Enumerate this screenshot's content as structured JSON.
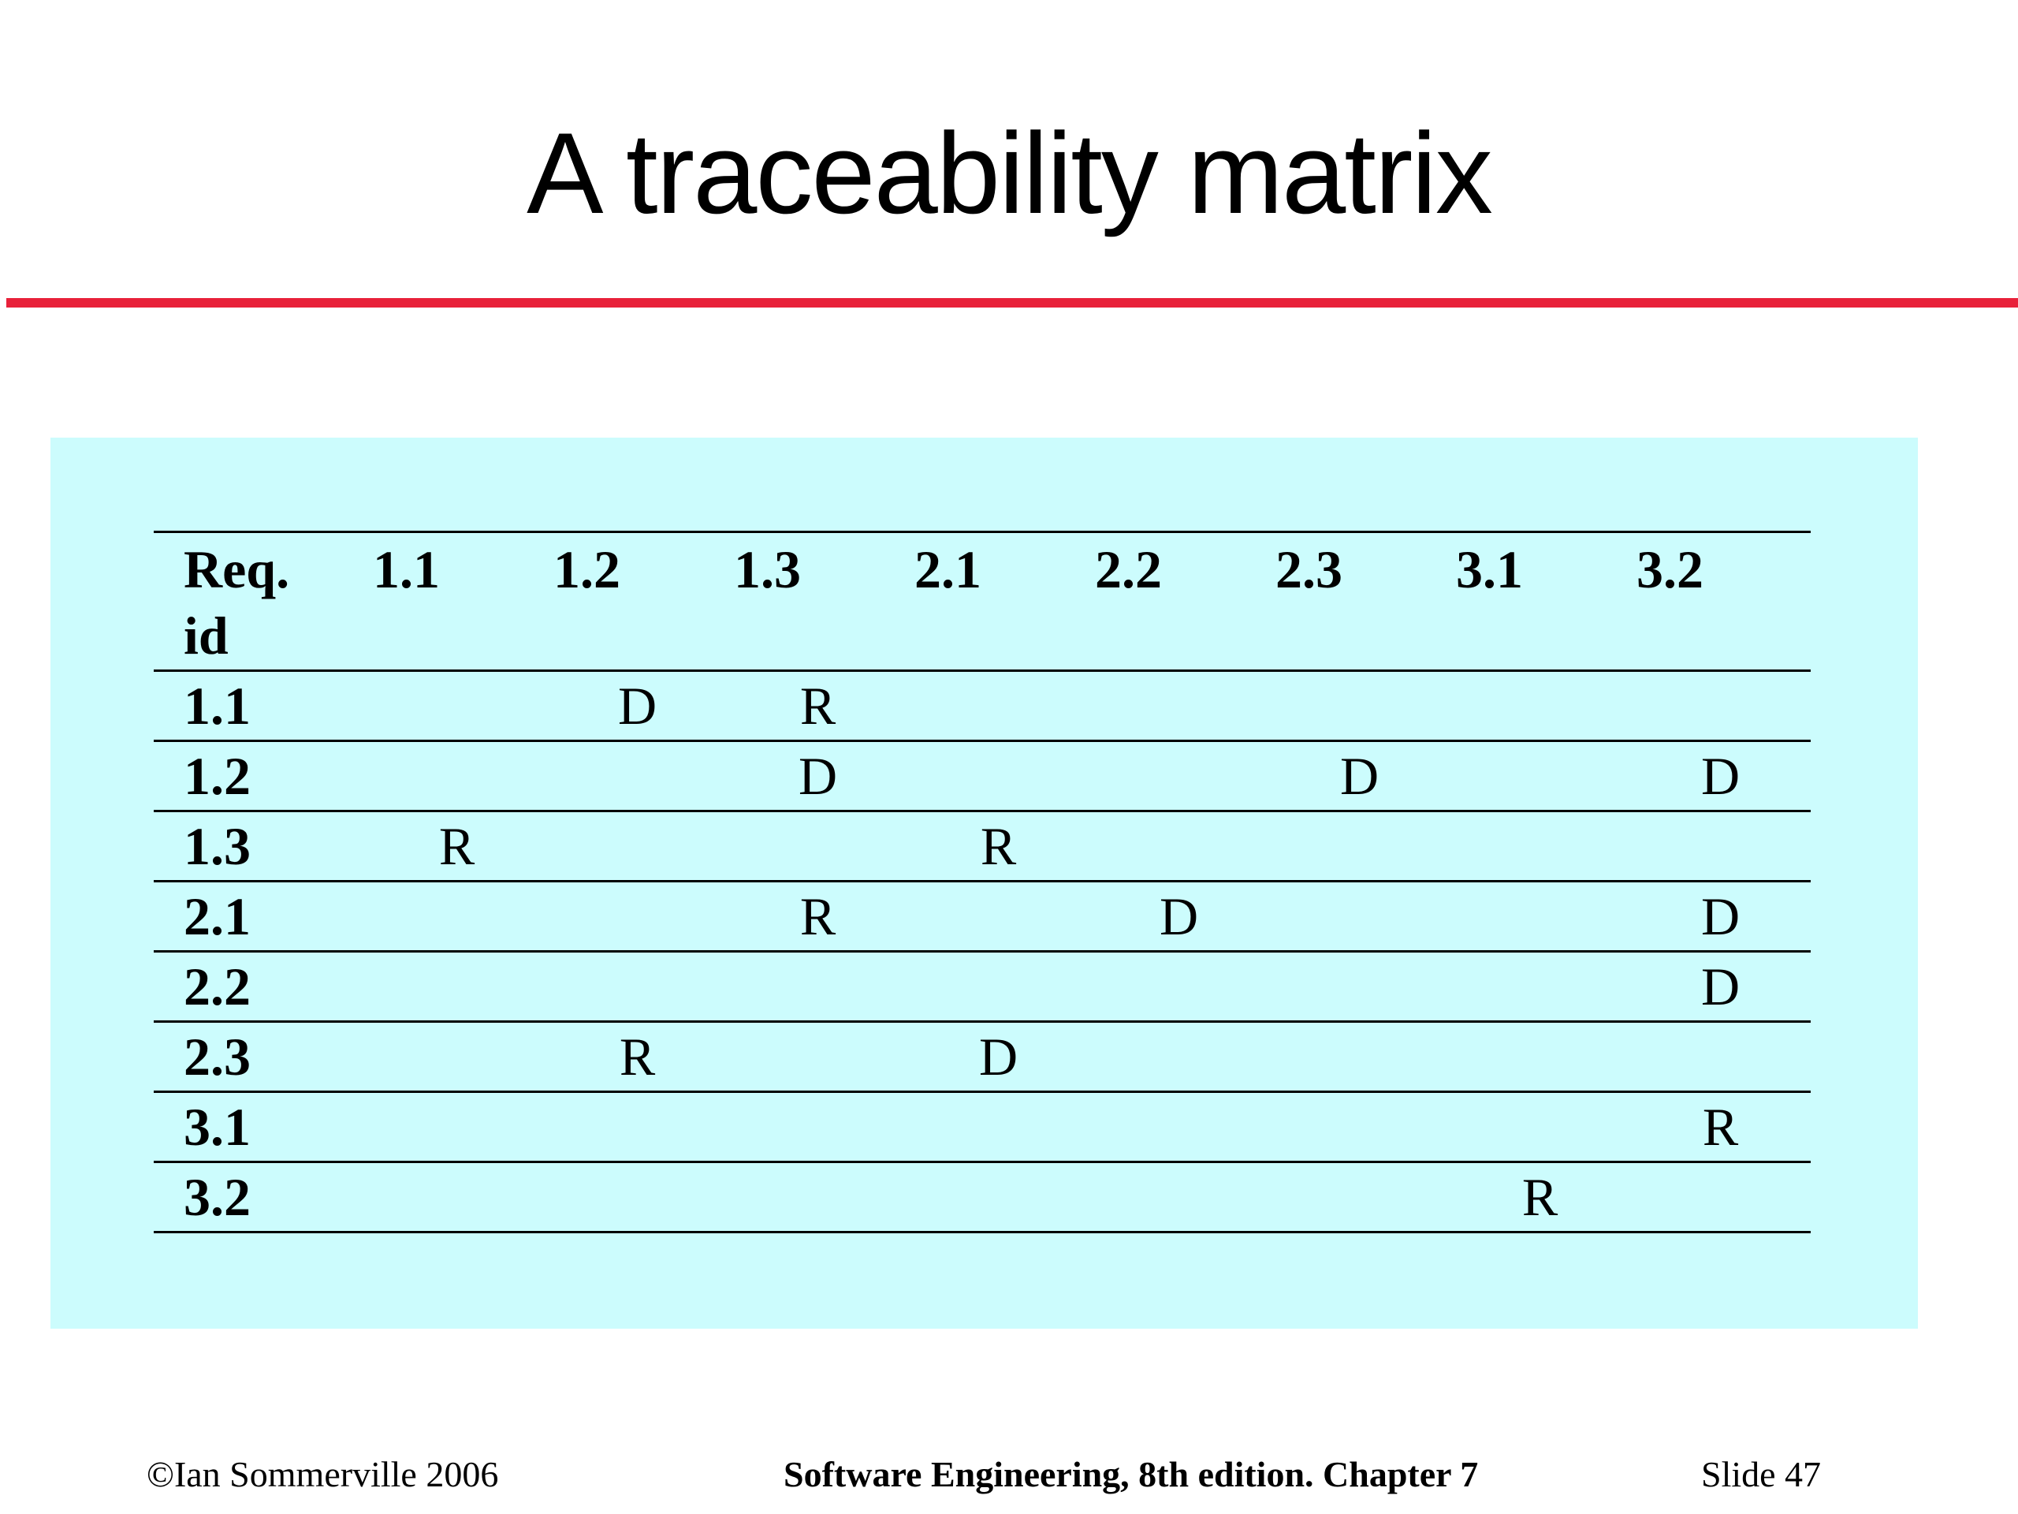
{
  "slide": {
    "title": "A traceability matrix"
  },
  "colors": {
    "title_rule": "#e8213a",
    "panel_background": "#ccfcfd"
  },
  "matrix": {
    "header_id": "Req. id",
    "columns": [
      "1.1",
      "1.2",
      "1.3",
      "2.1",
      "2.2",
      "2.3",
      "3.1",
      "3.2"
    ],
    "rows": [
      {
        "id": "1.1",
        "cells": [
          "",
          "D",
          "R",
          "",
          "",
          "",
          "",
          ""
        ]
      },
      {
        "id": "1.2",
        "cells": [
          "",
          "",
          "D",
          "",
          "",
          "D",
          "",
          "D"
        ]
      },
      {
        "id": "1.3",
        "cells": [
          "R",
          "",
          "",
          "R",
          "",
          "",
          "",
          ""
        ]
      },
      {
        "id": "2.1",
        "cells": [
          "",
          "",
          "R",
          "",
          "D",
          "",
          "",
          "D"
        ]
      },
      {
        "id": "2.2",
        "cells": [
          "",
          "",
          "",
          "",
          "",
          "",
          "",
          "D"
        ]
      },
      {
        "id": "2.3",
        "cells": [
          "",
          "R",
          "",
          "D",
          "",
          "",
          "",
          ""
        ]
      },
      {
        "id": "3.1",
        "cells": [
          "",
          "",
          "",
          "",
          "",
          "",
          "",
          "R"
        ]
      },
      {
        "id": "3.2",
        "cells": [
          "",
          "",
          "",
          "",
          "",
          "",
          "R",
          ""
        ]
      }
    ]
  },
  "footer": {
    "copyright": "©Ian Sommerville 2006",
    "book": "Software Engineering, 8th edition. Chapter 7",
    "slide_number": "Slide  47"
  }
}
